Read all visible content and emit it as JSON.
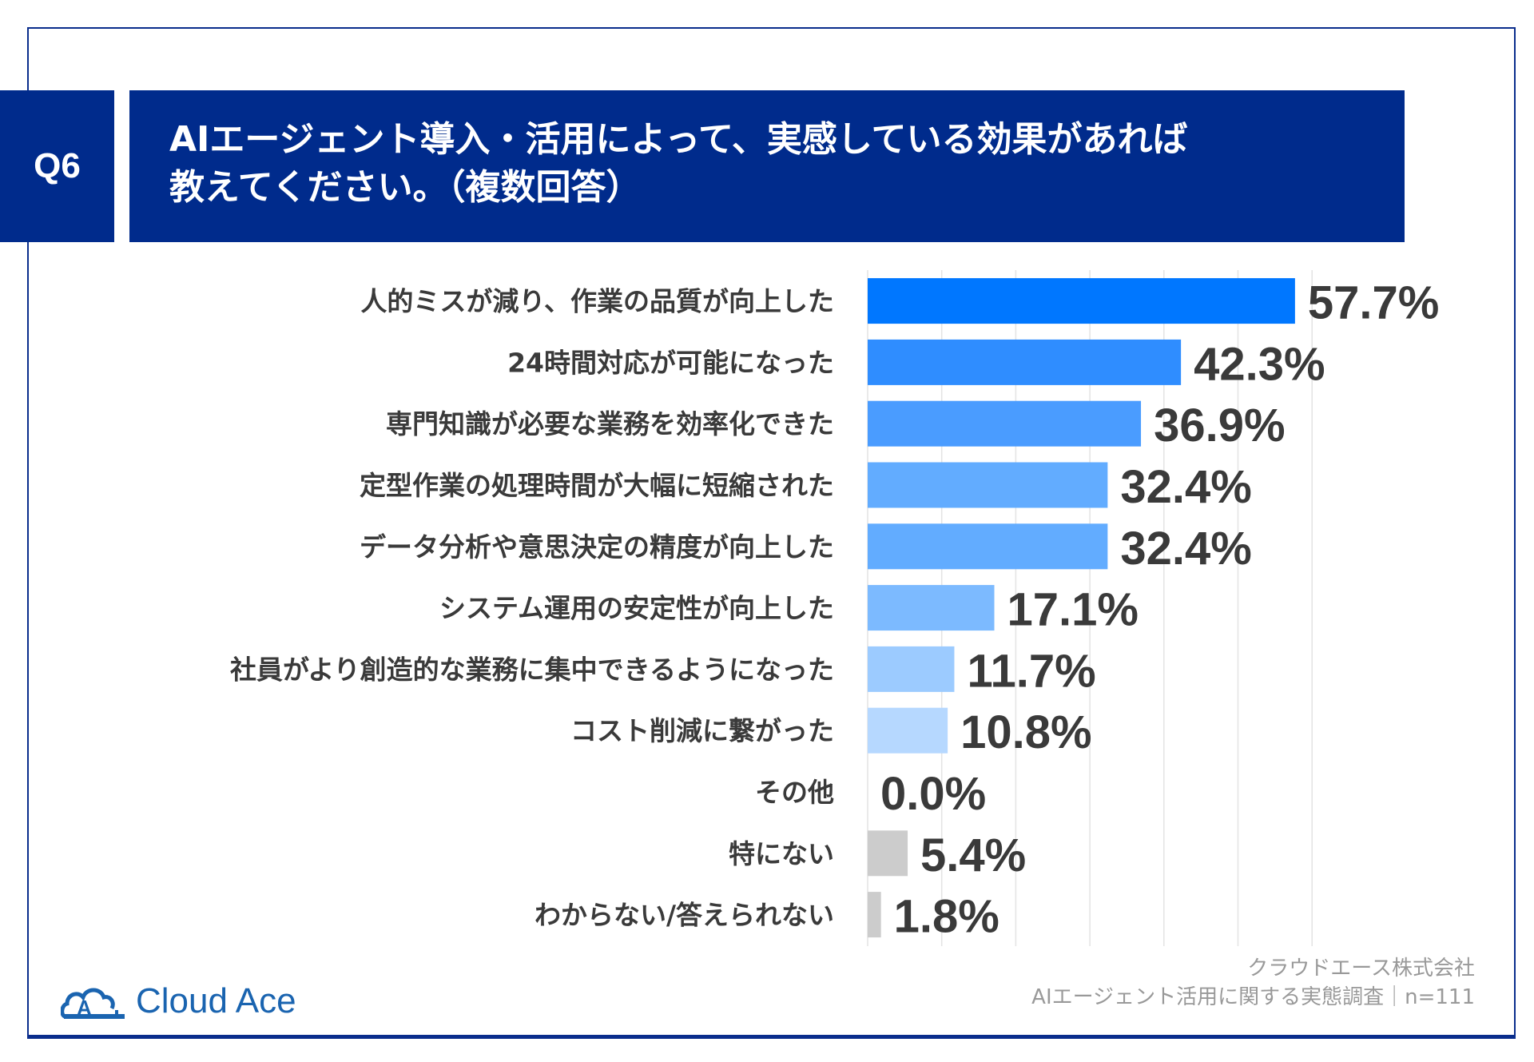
{
  "header": {
    "question_number": "Q6",
    "title_line1": "AIエージェント導入・活用によって、実感している効果があれば",
    "title_line2": "教えてください。（複数回答）"
  },
  "chart_data": {
    "type": "bar",
    "orientation": "horizontal",
    "categories": [
      "人的ミスが減り、作業の品質が向上した",
      "24時間対応が可能になった",
      "専門知識が必要な業務を効率化できた",
      "定型作業の処理時間が大幅に短縮された",
      "データ分析や意思決定の精度が向上した",
      "システム運用の安定性が向上した",
      "社員がより創造的な業務に集中できるようになった",
      "コスト削減に繋がった",
      "その他",
      "特にない",
      "わからない/答えられない"
    ],
    "values": [
      57.7,
      42.3,
      36.9,
      32.4,
      32.4,
      17.1,
      11.7,
      10.8,
      0.0,
      5.4,
      1.8
    ],
    "value_labels": [
      "57.7%",
      "42.3%",
      "36.9%",
      "32.4%",
      "32.4%",
      "17.1%",
      "11.7%",
      "10.8%",
      "0.0%",
      "5.4%",
      "1.8%"
    ],
    "colors": [
      "#0077ff",
      "#2f8dff",
      "#4a9cff",
      "#62acff",
      "#62acff",
      "#7cbaff",
      "#9ccbff",
      "#b6d8ff",
      "#b6d8ff",
      "#cccccc",
      "#cccccc"
    ],
    "xlim": [
      0,
      60
    ],
    "grid": true,
    "grid_step": 10,
    "unit": "%"
  },
  "footer": {
    "company": "クラウドエース株式会社",
    "survey": "AIエージェント活用に関する実態調査｜n=111"
  },
  "logo": {
    "text": "Cloud Ace",
    "color": "#1a64b0"
  }
}
